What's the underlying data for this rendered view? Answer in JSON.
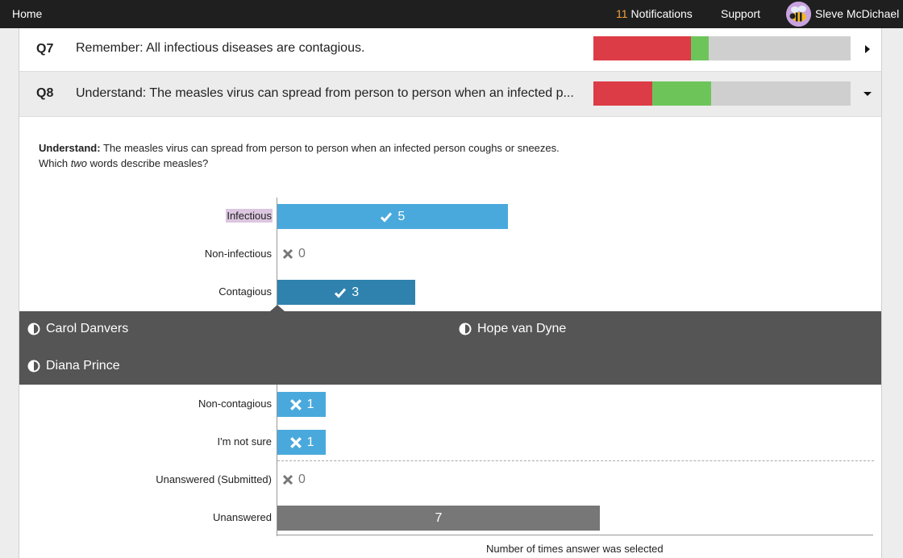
{
  "nav": {
    "home": "Home",
    "notifications_count": "11",
    "notifications_label": "Notifications",
    "support": "Support",
    "user_name": "Sleve McDichael"
  },
  "questions": [
    {
      "num": "Q7",
      "text": "Remember: All infectious diseases are contagious.",
      "progress": {
        "incorrect": 0.38,
        "correct": 0.07
      },
      "expanded": false
    },
    {
      "num": "Q8",
      "text": "Understand: The measles virus can spread from person to person when an infected p...",
      "progress": {
        "incorrect": 0.23,
        "correct": 0.23
      },
      "expanded": true
    }
  ],
  "q8_detail": {
    "prefix": "Understand:",
    "statement": " The measles virus can spread from person to person when an infected person coughs or sneezes.",
    "prompt_before": "Which ",
    "prompt_em": "two",
    "prompt_after": " words describe measles?"
  },
  "chart_data": {
    "type": "bar",
    "orientation": "horizontal",
    "xlabel": "Number of times answer was selected",
    "xlim": [
      0,
      11
    ],
    "categories": [
      "Infectious",
      "Non-infectious",
      "Contagious",
      "Non-contagious",
      "I'm not sure",
      "Unanswered (Submitted)",
      "Unanswered"
    ],
    "values": [
      5,
      0,
      3,
      1,
      1,
      0,
      7
    ],
    "markers": [
      "correct",
      "incorrect",
      "correct",
      "incorrect",
      "incorrect",
      "incorrect",
      "none"
    ],
    "colors": {
      "correct": "#4aa9dc",
      "selected": "#2f82ad",
      "incorrect": "#4aa9dc",
      "unanswered": "#777777"
    },
    "highlighted": "Infectious",
    "selected": "Contagious"
  },
  "popup": {
    "students": [
      "Carol Danvers",
      "Hope van Dyne",
      "Diana Prince"
    ]
  },
  "colors": {
    "incorrect": "#dc3c46",
    "correct": "#6dc55a",
    "track": "#cfcfcf"
  }
}
